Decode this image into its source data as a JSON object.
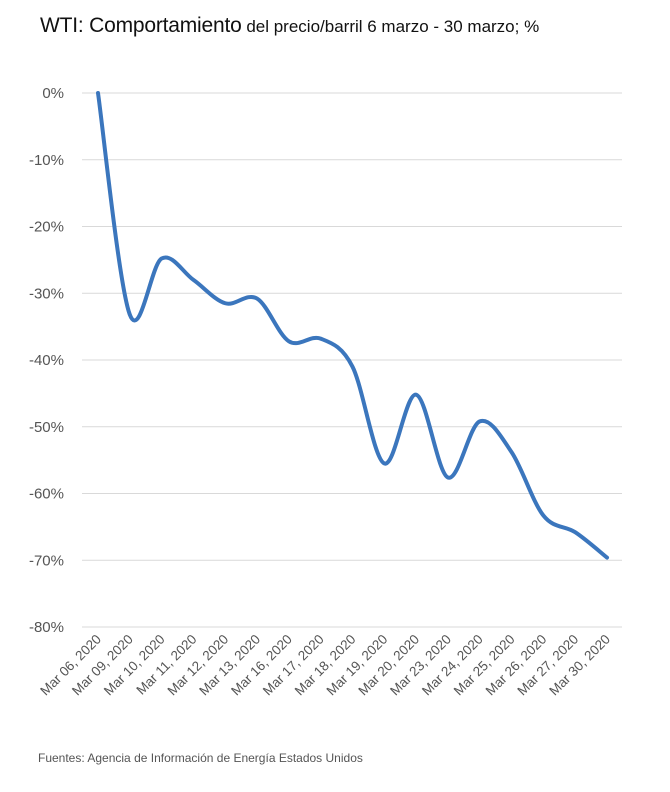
{
  "title": {
    "prefix": "WTI: ",
    "main": "Comportamiento",
    "rest": " del precio/barril  6 marzo - 30 marzo; %"
  },
  "source": "Fuentes: Agencia de Información de Energía Estados Unidos",
  "chart_data": {
    "type": "line",
    "title": "WTI: Comportamiento del precio/barril  6 marzo - 30 marzo; %",
    "xlabel": "",
    "ylabel": "",
    "categories": [
      "Mar 06, 2020",
      "Mar 09, 2020",
      "Mar 10, 2020",
      "Mar 11, 2020",
      "Mar 12, 2020",
      "Mar 13, 2020",
      "Mar 16, 2020",
      "Mar 17, 2020",
      "Mar 18, 2020",
      "Mar 19, 2020",
      "Mar 20, 2020",
      "Mar 23, 2020",
      "Mar 24, 2020",
      "Mar 25, 2020",
      "Mar 26, 2020",
      "Mar 27, 2020",
      "Mar 30, 2020"
    ],
    "series": [
      {
        "values": [
          0,
          -33.2,
          -24.8,
          -28.0,
          -31.5,
          -30.8,
          -37.2,
          -36.8,
          -41.0,
          -55.5,
          -45.2,
          -57.6,
          -49.2,
          -53.8,
          -63.3,
          -65.8,
          -69.6
        ]
      }
    ],
    "ylim": [
      -80,
      0
    ],
    "yticks": [
      0,
      -10,
      -20,
      -30,
      -40,
      -50,
      -60,
      -70,
      -80
    ],
    "ytick_labels": [
      "0%",
      "-10%",
      "-20%",
      "-30%",
      "-40%",
      "-50%",
      "-60%",
      "-70%",
      "-80%"
    ],
    "grid": true,
    "legend": "none",
    "colors": {
      "line": "#3b76bd",
      "grid": "#d9d9d9"
    }
  }
}
